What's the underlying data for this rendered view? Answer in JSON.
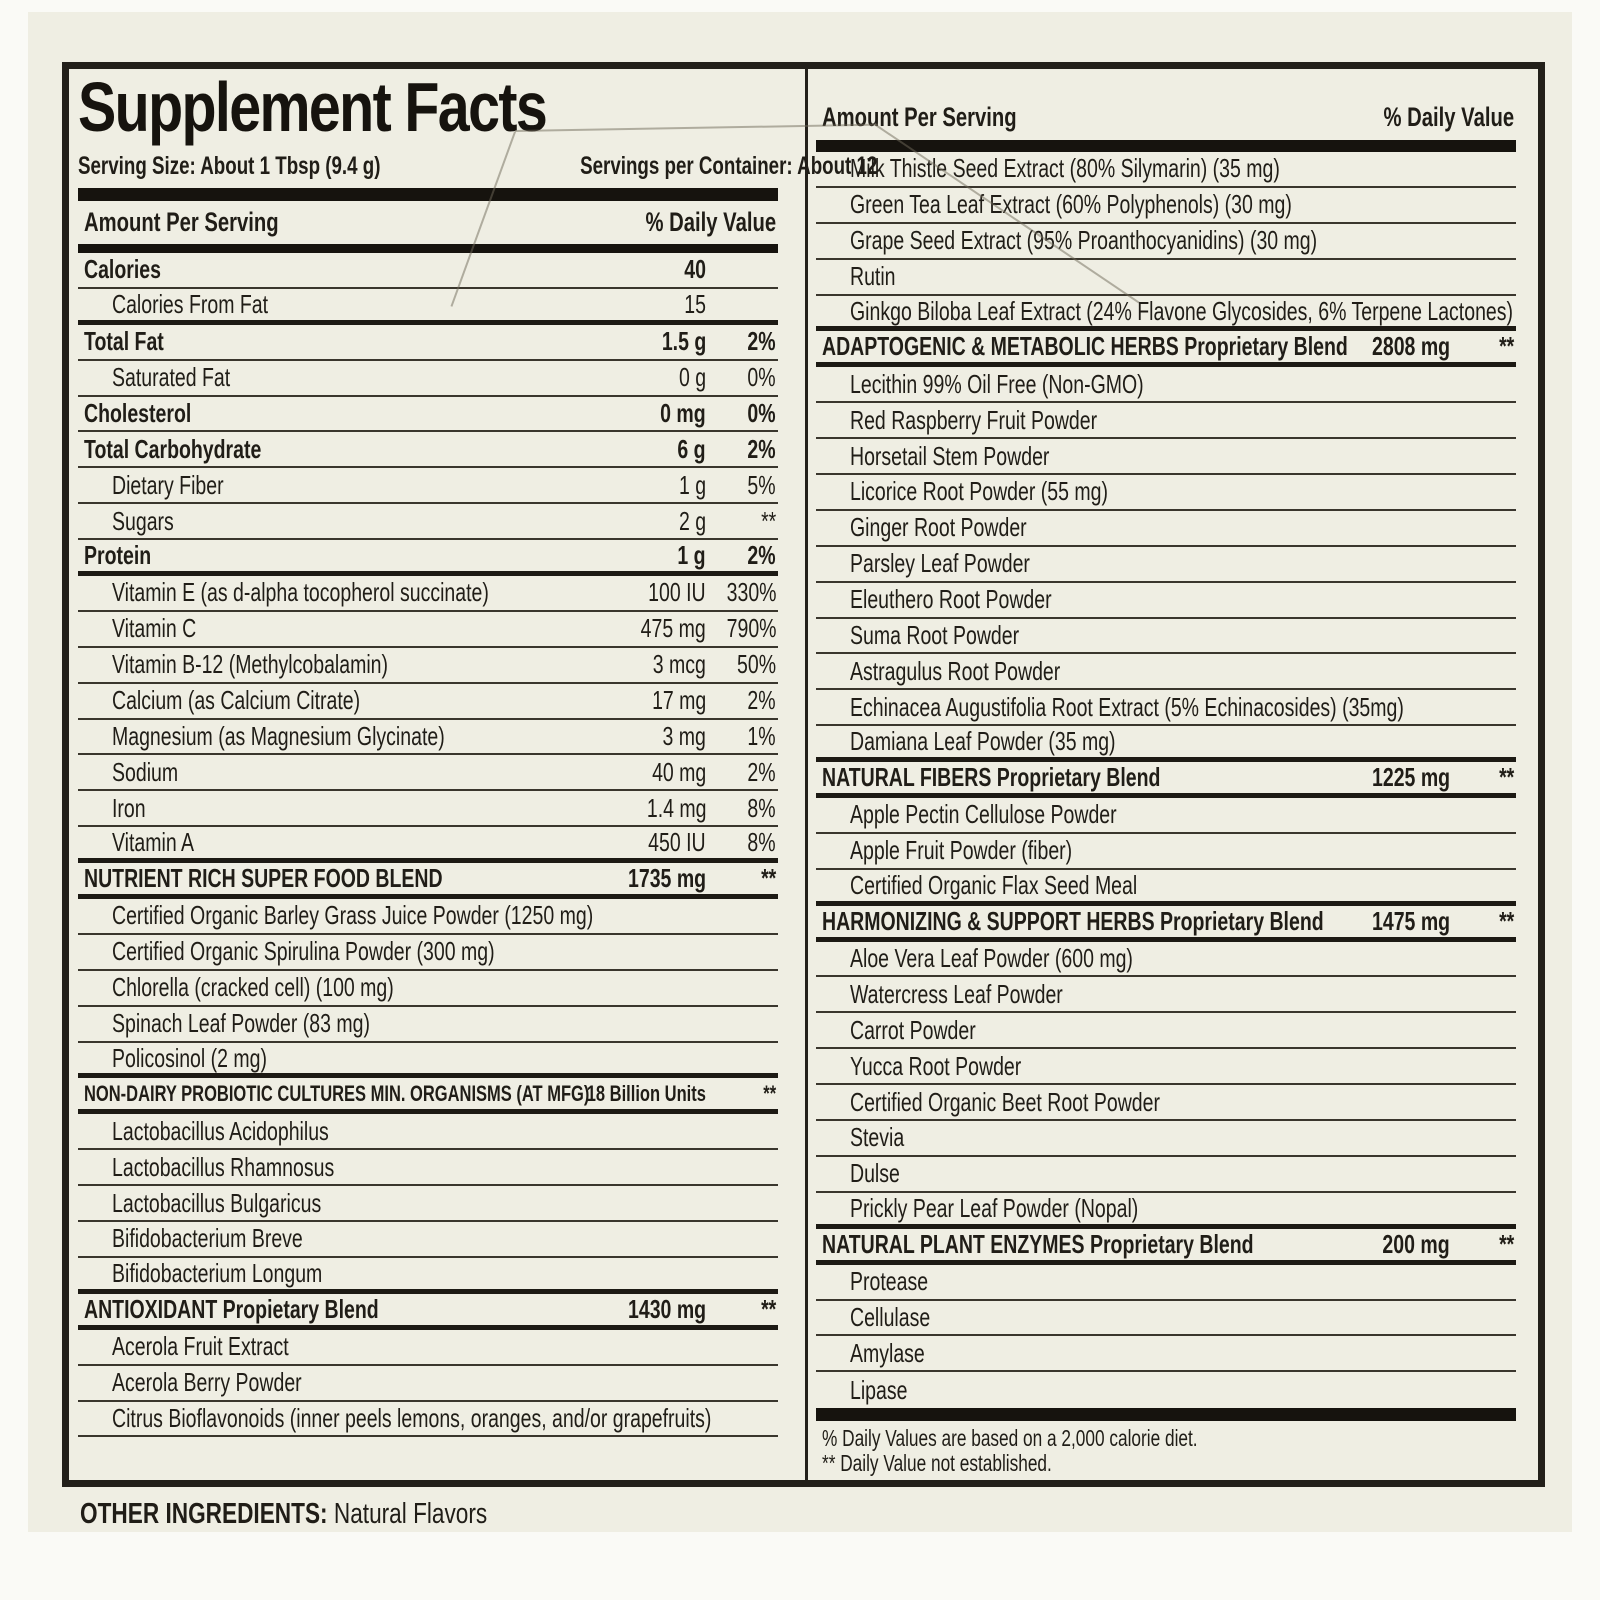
{
  "colors": {
    "label_bg": "#efeee3",
    "ink": "#201d17",
    "bar_black": "#16130e",
    "page_bg": "#fafaf6"
  },
  "label": {
    "title": "Supplement Facts",
    "serving_size": "Serving Size: About 1 Tbsp (9.4 g)",
    "servings_per_container": "Servings per Container: About 12",
    "left_header": {
      "amount": "Amount Per Serving",
      "dv": "% Daily Value"
    },
    "right_header": {
      "amount": "Amount Per Serving",
      "dv": "% Daily Value"
    },
    "left_rows": [
      {
        "name": "Calories",
        "amount": "40",
        "dv": "",
        "style": "main",
        "sep": "thin"
      },
      {
        "name": "Calories From Fat",
        "amount": "15",
        "dv": "",
        "style": "sub",
        "sep": "thick"
      },
      {
        "name": "Total Fat",
        "amount": "1.5 g",
        "dv": "2%",
        "style": "main",
        "sep": "thin"
      },
      {
        "name": "Saturated Fat",
        "amount": "0 g",
        "dv": "0%",
        "style": "sub",
        "sep": "thin"
      },
      {
        "name": "Cholesterol",
        "amount": "0 mg",
        "dv": "0%",
        "style": "main",
        "sep": "thin"
      },
      {
        "name": "Total Carbohydrate",
        "amount": "6 g",
        "dv": "2%",
        "style": "main",
        "sep": "thin"
      },
      {
        "name": "Dietary Fiber",
        "amount": "1 g",
        "dv": "5%",
        "style": "sub",
        "sep": "thin"
      },
      {
        "name": "Sugars",
        "amount": "2 g",
        "dv": "**",
        "style": "sub",
        "sep": "thin"
      },
      {
        "name": "Protein",
        "amount": "1 g",
        "dv": "2%",
        "style": "main",
        "sep": "thick"
      },
      {
        "name": "Vitamin E (as d-alpha tocopherol succinate)",
        "amount": "100 IU",
        "dv": "330%",
        "style": "sub",
        "sep": "thin"
      },
      {
        "name": "Vitamin C",
        "amount": "475 mg",
        "dv": "790%",
        "style": "sub",
        "sep": "thin"
      },
      {
        "name": "Vitamin B-12 (Methylcobalamin)",
        "amount": "3 mcg",
        "dv": "50%",
        "style": "sub",
        "sep": "thin"
      },
      {
        "name": "Calcium (as Calcium Citrate)",
        "amount": "17 mg",
        "dv": "2%",
        "style": "sub",
        "sep": "thin"
      },
      {
        "name": "Magnesium (as Magnesium Glycinate)",
        "amount": "3 mg",
        "dv": "1%",
        "style": "sub",
        "sep": "thin"
      },
      {
        "name": "Sodium",
        "amount": "40 mg",
        "dv": "2%",
        "style": "sub",
        "sep": "thin"
      },
      {
        "name": "Iron",
        "amount": "1.4 mg",
        "dv": "8%",
        "style": "sub",
        "sep": "thin"
      },
      {
        "name": "Vitamin A",
        "amount": "450 IU",
        "dv": "8%",
        "style": "sub",
        "sep": "thick"
      },
      {
        "name": "NUTRIENT RICH SUPER FOOD BLEND",
        "amount": "1735 mg",
        "dv": "**",
        "style": "section",
        "sep": "thick"
      },
      {
        "name": "Certified Organic Barley Grass Juice Powder (1250 mg)",
        "amount": "",
        "dv": "",
        "style": "sub",
        "sep": "thin"
      },
      {
        "name": "Certified Organic Spirulina Powder (300 mg)",
        "amount": "",
        "dv": "",
        "style": "sub",
        "sep": "thin"
      },
      {
        "name": "Chlorella (cracked cell) (100 mg)",
        "amount": "",
        "dv": "",
        "style": "sub",
        "sep": "thin"
      },
      {
        "name": "Spinach Leaf Powder (83 mg)",
        "amount": "",
        "dv": "",
        "style": "sub",
        "sep": "thin"
      },
      {
        "name": "Policosinol (2 mg)",
        "amount": "",
        "dv": "",
        "style": "sub",
        "sep": "thick"
      },
      {
        "name": "NON-DAIRY PROBIOTIC CULTURES MIN. ORGANISMS (AT MFG)",
        "amount": "18 Billion Units",
        "dv": "**",
        "style": "section-sm",
        "sep": "thick"
      },
      {
        "name": "Lactobacillus Acidophilus",
        "amount": "",
        "dv": "",
        "style": "sub",
        "sep": "thin"
      },
      {
        "name": "Lactobacillus Rhamnosus",
        "amount": "",
        "dv": "",
        "style": "sub",
        "sep": "thin"
      },
      {
        "name": "Lactobacillus Bulgaricus",
        "amount": "",
        "dv": "",
        "style": "sub",
        "sep": "thin"
      },
      {
        "name": "Bifidobacterium Breve",
        "amount": "",
        "dv": "",
        "style": "sub",
        "sep": "thin"
      },
      {
        "name": "Bifidobacterium Longum",
        "amount": "",
        "dv": "",
        "style": "sub",
        "sep": "thick"
      },
      {
        "name": "ANTIOXIDANT Propietary Blend",
        "amount": "1430 mg",
        "dv": "**",
        "style": "section",
        "sep": "thick"
      },
      {
        "name": "Acerola Fruit Extract",
        "amount": "",
        "dv": "",
        "style": "sub",
        "sep": "thin"
      },
      {
        "name": "Acerola Berry Powder",
        "amount": "",
        "dv": "",
        "style": "sub",
        "sep": "thin"
      },
      {
        "name": "Citrus Bioflavonoids (inner peels lemons, oranges, and/or grapefruits)",
        "amount": "",
        "dv": "",
        "style": "sub",
        "sep": "thin"
      }
    ],
    "right_rows": [
      {
        "name": "Milk Thistle Seed Extract (80% Silymarin) (35 mg)",
        "amount": "",
        "dv": "",
        "style": "sub",
        "sep": "thin"
      },
      {
        "name": "Green Tea Leaf Extract (60% Polyphenols) (30 mg)",
        "amount": "",
        "dv": "",
        "style": "sub",
        "sep": "thin"
      },
      {
        "name": "Grape Seed Extract (95% Proanthocyanidins) (30 mg)",
        "amount": "",
        "dv": "",
        "style": "sub",
        "sep": "thin"
      },
      {
        "name": "Rutin",
        "amount": "",
        "dv": "",
        "style": "sub",
        "sep": "thin"
      },
      {
        "name": "Ginkgo Biloba Leaf Extract (24% Flavone Glycosides, 6% Terpene Lactones)",
        "amount": "",
        "dv": "",
        "style": "sub",
        "sep": "thick"
      },
      {
        "name": "ADAPTOGENIC & METABOLIC HERBS Proprietary Blend",
        "amount": "2808 mg",
        "dv": "**",
        "style": "section",
        "sep": "thick"
      },
      {
        "name": "Lecithin 99% Oil Free (Non-GMO)",
        "amount": "",
        "dv": "",
        "style": "sub",
        "sep": "thin"
      },
      {
        "name": "Red Raspberry Fruit Powder",
        "amount": "",
        "dv": "",
        "style": "sub",
        "sep": "thin"
      },
      {
        "name": "Horsetail Stem Powder",
        "amount": "",
        "dv": "",
        "style": "sub",
        "sep": "thin"
      },
      {
        "name": "Licorice Root Powder (55 mg)",
        "amount": "",
        "dv": "",
        "style": "sub",
        "sep": "thin"
      },
      {
        "name": "Ginger Root Powder",
        "amount": "",
        "dv": "",
        "style": "sub",
        "sep": "thin"
      },
      {
        "name": "Parsley Leaf Powder",
        "amount": "",
        "dv": "",
        "style": "sub",
        "sep": "thin"
      },
      {
        "name": "Eleuthero Root Powder",
        "amount": "",
        "dv": "",
        "style": "sub",
        "sep": "thin"
      },
      {
        "name": "Suma Root Powder",
        "amount": "",
        "dv": "",
        "style": "sub",
        "sep": "thin"
      },
      {
        "name": "Astragulus Root Powder",
        "amount": "",
        "dv": "",
        "style": "sub",
        "sep": "thin"
      },
      {
        "name": "Echinacea Augustifolia Root Extract (5% Echinacosides) (35mg)",
        "amount": "",
        "dv": "",
        "style": "sub",
        "sep": "thin"
      },
      {
        "name": "Damiana Leaf Powder (35 mg)",
        "amount": "",
        "dv": "",
        "style": "sub",
        "sep": "thick"
      },
      {
        "name": "NATURAL FIBERS Proprietary Blend",
        "amount": "1225 mg",
        "dv": "**",
        "style": "section",
        "sep": "thick"
      },
      {
        "name": "Apple Pectin Cellulose Powder",
        "amount": "",
        "dv": "",
        "style": "sub",
        "sep": "thin"
      },
      {
        "name": "Apple Fruit Powder (fiber)",
        "amount": "",
        "dv": "",
        "style": "sub",
        "sep": "thin"
      },
      {
        "name": "Certified Organic Flax Seed Meal",
        "amount": "",
        "dv": "",
        "style": "sub",
        "sep": "thick"
      },
      {
        "name": "HARMONIZING & SUPPORT HERBS Proprietary Blend",
        "amount": "1475 mg",
        "dv": "**",
        "style": "section",
        "sep": "thick"
      },
      {
        "name": "Aloe Vera Leaf Powder (600 mg)",
        "amount": "",
        "dv": "",
        "style": "sub",
        "sep": "thin"
      },
      {
        "name": "Watercress Leaf Powder",
        "amount": "",
        "dv": "",
        "style": "sub",
        "sep": "thin"
      },
      {
        "name": "Carrot Powder",
        "amount": "",
        "dv": "",
        "style": "sub",
        "sep": "thin"
      },
      {
        "name": "Yucca Root Powder",
        "amount": "",
        "dv": "",
        "style": "sub",
        "sep": "thin"
      },
      {
        "name": "Certified Organic Beet Root Powder",
        "amount": "",
        "dv": "",
        "style": "sub",
        "sep": "thin"
      },
      {
        "name": "Stevia",
        "amount": "",
        "dv": "",
        "style": "sub",
        "sep": "thin"
      },
      {
        "name": "Dulse",
        "amount": "",
        "dv": "",
        "style": "sub",
        "sep": "thin"
      },
      {
        "name": "Prickly Pear Leaf Powder (Nopal)",
        "amount": "",
        "dv": "",
        "style": "sub",
        "sep": "thick"
      },
      {
        "name": "NATURAL PLANT ENZYMES Proprietary Blend",
        "amount": "200 mg",
        "dv": "**",
        "style": "section",
        "sep": "thick"
      },
      {
        "name": "Protease",
        "amount": "",
        "dv": "",
        "style": "sub",
        "sep": "thin"
      },
      {
        "name": "Cellulase",
        "amount": "",
        "dv": "",
        "style": "sub",
        "sep": "thin"
      },
      {
        "name": "Amylase",
        "amount": "",
        "dv": "",
        "style": "sub",
        "sep": "thin"
      },
      {
        "name": "Lipase",
        "amount": "",
        "dv": "",
        "style": "sub",
        "sep": "none"
      }
    ],
    "footnotes": [
      "% Daily Values are based on a 2,000 calorie diet.",
      "** Daily Value not established."
    ],
    "other_ingredients": {
      "label": "OTHER INGREDIENTS:",
      "value": "Natural Flavors"
    }
  }
}
